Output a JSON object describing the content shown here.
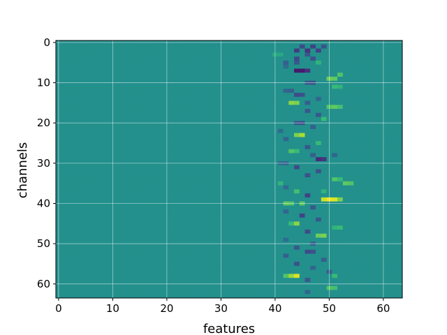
{
  "chart_data": {
    "type": "heatmap",
    "title": "",
    "xlabel": "features",
    "ylabel": "channels",
    "xlim": [
      -0.5,
      63.5
    ],
    "ylim": [
      63.5,
      -0.5
    ],
    "x_ticks": [
      0,
      10,
      20,
      30,
      40,
      50,
      60
    ],
    "y_ticks": [
      0,
      10,
      20,
      30,
      40,
      50,
      60
    ],
    "grid": true,
    "colormap": "viridis",
    "color_range": [
      -1,
      1
    ],
    "baseline_value": 0.0,
    "rows": 64,
    "cols": 64,
    "active_column_range": [
      40,
      55
    ],
    "cells": [
      {
        "row": 1,
        "col": 45,
        "value": -0.55
      },
      {
        "row": 1,
        "col": 47,
        "value": -0.6
      },
      {
        "row": 1,
        "col": 49,
        "value": -0.5
      },
      {
        "row": 2,
        "col": 44,
        "value": -0.65
      },
      {
        "row": 2,
        "col": 46,
        "value": -0.7
      },
      {
        "row": 2,
        "col": 48,
        "value": -0.6
      },
      {
        "row": 3,
        "col": 40,
        "value": 0.2
      },
      {
        "row": 3,
        "col": 41,
        "value": 0.2
      },
      {
        "row": 3,
        "col": 46,
        "value": -0.45
      },
      {
        "row": 4,
        "col": 44,
        "value": -0.55
      },
      {
        "row": 4,
        "col": 47,
        "value": -0.5
      },
      {
        "row": 5,
        "col": 42,
        "value": -0.4
      },
      {
        "row": 5,
        "col": 44,
        "value": -0.45
      },
      {
        "row": 5,
        "col": 48,
        "value": 0.3
      },
      {
        "row": 6,
        "col": 42,
        "value": -0.3
      },
      {
        "row": 7,
        "col": 44,
        "value": -0.85
      },
      {
        "row": 7,
        "col": 45,
        "value": -0.85
      },
      {
        "row": 7,
        "col": 46,
        "value": -0.7
      },
      {
        "row": 8,
        "col": 52,
        "value": 0.45
      },
      {
        "row": 9,
        "col": 50,
        "value": 0.55
      },
      {
        "row": 9,
        "col": 51,
        "value": 0.5
      },
      {
        "row": 10,
        "col": 46,
        "value": -0.45
      },
      {
        "row": 10,
        "col": 47,
        "value": -0.5
      },
      {
        "row": 11,
        "col": 51,
        "value": 0.35
      },
      {
        "row": 11,
        "col": 52,
        "value": 0.3
      },
      {
        "row": 12,
        "col": 42,
        "value": -0.35
      },
      {
        "row": 12,
        "col": 43,
        "value": -0.4
      },
      {
        "row": 13,
        "col": 44,
        "value": -0.55
      },
      {
        "row": 13,
        "col": 45,
        "value": -0.5
      },
      {
        "row": 14,
        "col": 48,
        "value": -0.35
      },
      {
        "row": 15,
        "col": 43,
        "value": 0.65
      },
      {
        "row": 15,
        "col": 44,
        "value": 0.6
      },
      {
        "row": 15,
        "col": 46,
        "value": -0.4
      },
      {
        "row": 16,
        "col": 50,
        "value": 0.45
      },
      {
        "row": 16,
        "col": 51,
        "value": 0.5
      },
      {
        "row": 16,
        "col": 52,
        "value": 0.4
      },
      {
        "row": 17,
        "col": 46,
        "value": -0.45
      },
      {
        "row": 18,
        "col": 48,
        "value": -0.45
      },
      {
        "row": 19,
        "col": 49,
        "value": 0.35
      },
      {
        "row": 20,
        "col": 44,
        "value": -0.45
      },
      {
        "row": 20,
        "col": 45,
        "value": -0.5
      },
      {
        "row": 21,
        "col": 47,
        "value": -0.4
      },
      {
        "row": 22,
        "col": 41,
        "value": -0.3
      },
      {
        "row": 23,
        "col": 44,
        "value": 0.6
      },
      {
        "row": 23,
        "col": 45,
        "value": 0.75
      },
      {
        "row": 24,
        "col": 42,
        "value": -0.35
      },
      {
        "row": 25,
        "col": 48,
        "value": 0.35
      },
      {
        "row": 26,
        "col": 46,
        "value": -0.45
      },
      {
        "row": 27,
        "col": 43,
        "value": 0.45
      },
      {
        "row": 27,
        "col": 44,
        "value": 0.35
      },
      {
        "row": 28,
        "col": 47,
        "value": -0.4
      },
      {
        "row": 28,
        "col": 51,
        "value": -0.35
      },
      {
        "row": 29,
        "col": 48,
        "value": -0.75
      },
      {
        "row": 29,
        "col": 49,
        "value": -0.7
      },
      {
        "row": 30,
        "col": 41,
        "value": -0.3
      },
      {
        "row": 30,
        "col": 42,
        "value": -0.35
      },
      {
        "row": 31,
        "col": 44,
        "value": -0.55
      },
      {
        "row": 32,
        "col": 48,
        "value": -0.5
      },
      {
        "row": 33,
        "col": 46,
        "value": -0.5
      },
      {
        "row": 34,
        "col": 51,
        "value": 0.45
      },
      {
        "row": 34,
        "col": 52,
        "value": 0.35
      },
      {
        "row": 35,
        "col": 41,
        "value": 0.3
      },
      {
        "row": 35,
        "col": 53,
        "value": 0.5
      },
      {
        "row": 35,
        "col": 54,
        "value": 0.45
      },
      {
        "row": 36,
        "col": 42,
        "value": -0.3
      },
      {
        "row": 37,
        "col": 44,
        "value": 0.4
      },
      {
        "row": 37,
        "col": 49,
        "value": 0.3
      },
      {
        "row": 38,
        "col": 46,
        "value": -0.6
      },
      {
        "row": 39,
        "col": 49,
        "value": 0.85
      },
      {
        "row": 39,
        "col": 50,
        "value": 0.95
      },
      {
        "row": 39,
        "col": 51,
        "value": 0.9
      },
      {
        "row": 39,
        "col": 52,
        "value": 0.6
      },
      {
        "row": 40,
        "col": 42,
        "value": 0.5
      },
      {
        "row": 40,
        "col": 43,
        "value": 0.45
      },
      {
        "row": 40,
        "col": 45,
        "value": 0.5
      },
      {
        "row": 41,
        "col": 47,
        "value": -0.45
      },
      {
        "row": 42,
        "col": 42,
        "value": -0.35
      },
      {
        "row": 43,
        "col": 45,
        "value": -0.6
      },
      {
        "row": 44,
        "col": 48,
        "value": -0.45
      },
      {
        "row": 45,
        "col": 44,
        "value": 0.65
      },
      {
        "row": 45,
        "col": 43,
        "value": 0.35
      },
      {
        "row": 46,
        "col": 51,
        "value": 0.3
      },
      {
        "row": 46,
        "col": 52,
        "value": 0.35
      },
      {
        "row": 47,
        "col": 46,
        "value": -0.55
      },
      {
        "row": 48,
        "col": 48,
        "value": 0.55
      },
      {
        "row": 48,
        "col": 49,
        "value": 0.6
      },
      {
        "row": 49,
        "col": 42,
        "value": -0.3
      },
      {
        "row": 50,
        "col": 47,
        "value": -0.4
      },
      {
        "row": 51,
        "col": 44,
        "value": -0.45
      },
      {
        "row": 52,
        "col": 46,
        "value": -0.55
      },
      {
        "row": 52,
        "col": 47,
        "value": -0.5
      },
      {
        "row": 53,
        "col": 42,
        "value": -0.4
      },
      {
        "row": 54,
        "col": 49,
        "value": -0.4
      },
      {
        "row": 55,
        "col": 44,
        "value": -0.5
      },
      {
        "row": 56,
        "col": 47,
        "value": -0.35
      },
      {
        "row": 57,
        "col": 50,
        "value": -0.4
      },
      {
        "row": 58,
        "col": 43,
        "value": 0.7
      },
      {
        "row": 58,
        "col": 44,
        "value": 0.9
      },
      {
        "row": 58,
        "col": 42,
        "value": 0.45
      },
      {
        "row": 58,
        "col": 51,
        "value": 0.35
      },
      {
        "row": 59,
        "col": 46,
        "value": -0.45
      },
      {
        "row": 61,
        "col": 50,
        "value": 0.45
      },
      {
        "row": 61,
        "col": 51,
        "value": 0.4
      },
      {
        "row": 62,
        "col": 46,
        "value": -0.35
      }
    ]
  }
}
